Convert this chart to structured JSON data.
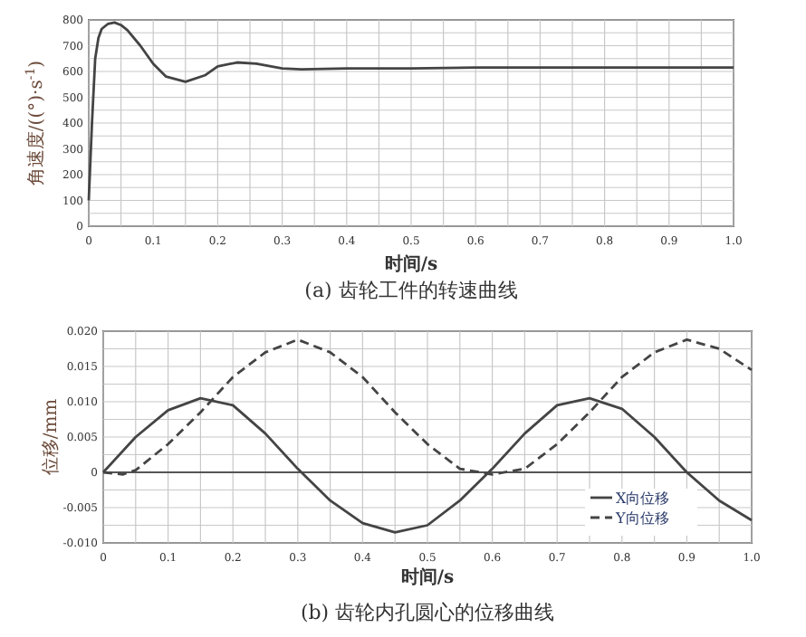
{
  "chart_data": [
    {
      "type": "line",
      "title": "(a) 齿轮工件的转速曲线",
      "xlabel": "时间/s",
      "ylabel": "角速度/((°)·s$^{-1}$)",
      "xlim": [
        0,
        1
      ],
      "ylim": [
        0,
        800
      ],
      "xticks": [
        0,
        {
          "value": 0.05,
          "label": null
        },
        {
          "value": 0.1,
          "label": "0.1"
        },
        {
          "value": 0.15,
          "label": null
        },
        {
          "value": 0.2,
          "label": "0.2"
        },
        {
          "value": 0.25,
          "label": null
        },
        {
          "value": 0.3,
          "label": "0.3"
        },
        {
          "value": 0.35,
          "label": null
        },
        {
          "value": 0.4,
          "label": "0.4"
        },
        {
          "value": 0.45,
          "label": null
        },
        {
          "value": 0.5,
          "label": "0.5"
        },
        {
          "value": 0.55,
          "label": null
        },
        {
          "value": 0.6,
          "label": "0.6"
        },
        {
          "value": 0.65,
          "label": null
        },
        {
          "value": 0.7,
          "label": "0.7"
        },
        {
          "value": 0.75,
          "label": null
        },
        {
          "value": 0.8,
          "label": "0.8"
        },
        {
          "value": 0.85,
          "label": null
        },
        {
          "value": 0.9,
          "label": "0.9"
        },
        {
          "value": 0.95,
          "label": null
        },
        {
          "value": 1,
          "label": "1.0"
        }
      ],
      "yticks": [
        0,
        {
          "value": 50,
          "label": null
        },
        100,
        {
          "value": 150,
          "label": null
        },
        200,
        {
          "value": 250,
          "label": null
        },
        300,
        {
          "value": 350,
          "label": null
        },
        400,
        {
          "value": 450,
          "label": null
        },
        500,
        {
          "value": 550,
          "label": null
        },
        600,
        {
          "value": 650,
          "label": null
        },
        700,
        {
          "value": 750,
          "label": null
        },
        800
      ],
      "grid": true,
      "legend": false,
      "series": [
        {
          "color": "#444444",
          "line_style": "solid",
          "x": [
            0,
            0.005,
            0.01,
            0.015,
            0.02,
            0.03,
            0.04,
            0.05,
            0.06,
            0.08,
            0.1,
            0.12,
            0.15,
            0.18,
            0.2,
            0.23,
            0.26,
            0.3,
            0.33,
            0.4,
            0.5,
            0.6,
            0.8,
            1.0
          ],
          "values": [
            100,
            400,
            650,
            730,
            765,
            785,
            790,
            780,
            760,
            700,
            630,
            580,
            560,
            585,
            620,
            635,
            630,
            612,
            608,
            612,
            612,
            615,
            615,
            615
          ]
        }
      ]
    },
    {
      "type": "line",
      "title": "(b) 齿轮内孔圆心的位移曲线",
      "xlabel": "时间/s",
      "ylabel": "位移/mm",
      "xlim": [
        0,
        1
      ],
      "ylim": [
        -0.01,
        0.02
      ],
      "xticks": [
        0,
        {
          "value": 0.05,
          "label": null
        },
        {
          "value": 0.1,
          "label": "0.1"
        },
        {
          "value": 0.15,
          "label": null
        },
        {
          "value": 0.2,
          "label": "0.2"
        },
        {
          "value": 0.25,
          "label": null
        },
        {
          "value": 0.3,
          "label": "0.3"
        },
        {
          "value": 0.35,
          "label": null
        },
        {
          "value": 0.4,
          "label": "0.4"
        },
        {
          "value": 0.45,
          "label": null
        },
        {
          "value": 0.5,
          "label": "0.5"
        },
        {
          "value": 0.55,
          "label": null
        },
        {
          "value": 0.6,
          "label": "0.6"
        },
        {
          "value": 0.65,
          "label": null
        },
        {
          "value": 0.7,
          "label": "0.7"
        },
        {
          "value": 0.75,
          "label": null
        },
        {
          "value": 0.8,
          "label": "0.8"
        },
        {
          "value": 0.85,
          "label": null
        },
        {
          "value": 0.9,
          "label": "0.9"
        },
        {
          "value": 0.95,
          "label": null
        },
        {
          "value": 1,
          "label": "1.0"
        }
      ],
      "yticks": [
        {
          "value": -0.01,
          "label": "-0.010"
        },
        {
          "value": -0.0075,
          "label": null
        },
        {
          "value": -0.005,
          "label": "-0.005"
        },
        {
          "value": -0.0025,
          "label": null
        },
        0,
        {
          "value": 0.0025,
          "label": null
        },
        {
          "value": 0.005,
          "label": "0.005"
        },
        {
          "value": 0.0075,
          "label": null
        },
        {
          "value": 0.01,
          "label": "0.010"
        },
        {
          "value": 0.0125,
          "label": null
        },
        {
          "value": 0.015,
          "label": "0.015"
        },
        {
          "value": 0.0175,
          "label": null
        },
        {
          "value": 0.02,
          "label": "0.020"
        }
      ],
      "grid": true,
      "legend": "bottom right",
      "ref_lines": [
        {
          "axis": "y",
          "value": 0,
          "color": "#555555"
        }
      ],
      "series": [
        {
          "name": "X向位移",
          "color": "#444444",
          "line_style": "solid",
          "x": [
            0,
            0.05,
            0.1,
            0.15,
            0.2,
            0.25,
            0.3,
            0.35,
            0.4,
            0.45,
            0.5,
            0.55,
            0.6,
            0.65,
            0.7,
            0.75,
            0.8,
            0.85,
            0.9,
            0.95,
            1.0
          ],
          "values": [
            0,
            0.005,
            0.0088,
            0.0105,
            0.0095,
            0.0055,
            0.0005,
            -0.004,
            -0.0072,
            -0.0085,
            -0.0075,
            -0.004,
            0.0005,
            0.0055,
            0.0095,
            0.0105,
            0.009,
            0.005,
            0,
            -0.004,
            -0.0068
          ]
        },
        {
          "name": "Y向位移",
          "color": "#444444",
          "line_style": "dashed",
          "x": [
            0,
            0.03,
            0.05,
            0.1,
            0.15,
            0.2,
            0.25,
            0.3,
            0.35,
            0.4,
            0.45,
            0.5,
            0.55,
            0.6,
            0.65,
            0.7,
            0.75,
            0.8,
            0.85,
            0.9,
            0.95,
            1.0
          ],
          "values": [
            0,
            -0.0003,
            0.0003,
            0.004,
            0.0085,
            0.0135,
            0.017,
            0.0188,
            0.017,
            0.0135,
            0.0085,
            0.004,
            0.0005,
            -0.0003,
            0.0005,
            0.004,
            0.0085,
            0.0135,
            0.017,
            0.0188,
            0.0175,
            0.0145
          ]
        }
      ]
    }
  ]
}
